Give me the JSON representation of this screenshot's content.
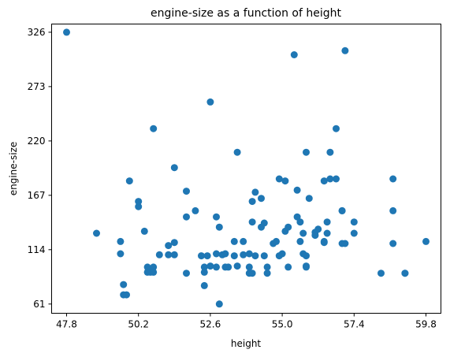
{
  "chart_data": {
    "type": "scatter",
    "title": "engine-size as a function of height",
    "xlabel": "height",
    "ylabel": "engine-size",
    "xlim": [
      47.3,
      60.3
    ],
    "ylim": [
      52,
      334
    ],
    "xticks": [
      47.8,
      50.2,
      52.6,
      55.0,
      57.4,
      59.8
    ],
    "xtick_labels": [
      "47.8",
      "50.2",
      "52.6",
      "55.0",
      "57.4",
      "59.8"
    ],
    "yticks": [
      61,
      114,
      167,
      220,
      273,
      326
    ],
    "ytick_labels": [
      "61",
      "114",
      "167",
      "220",
      "273",
      "326"
    ],
    "grid": false,
    "legend": "none",
    "marker_color": "#1f77b4",
    "points": [
      [
        47.8,
        326
      ],
      [
        48.8,
        130
      ],
      [
        49.6,
        122
      ],
      [
        49.6,
        110
      ],
      [
        49.7,
        80
      ],
      [
        49.7,
        70
      ],
      [
        49.8,
        70
      ],
      [
        49.9,
        181
      ],
      [
        50.2,
        156
      ],
      [
        50.2,
        161
      ],
      [
        50.4,
        132
      ],
      [
        50.5,
        97
      ],
      [
        50.5,
        92
      ],
      [
        50.6,
        92
      ],
      [
        50.7,
        232
      ],
      [
        50.7,
        97
      ],
      [
        50.7,
        92
      ],
      [
        50.9,
        109
      ],
      [
        51.2,
        118
      ],
      [
        51.2,
        109
      ],
      [
        51.4,
        121
      ],
      [
        51.4,
        109
      ],
      [
        51.4,
        194
      ],
      [
        51.8,
        171
      ],
      [
        51.8,
        146
      ],
      [
        51.8,
        91
      ],
      [
        52.1,
        152
      ],
      [
        52.3,
        108
      ],
      [
        52.4,
        97
      ],
      [
        52.4,
        92
      ],
      [
        52.4,
        79
      ],
      [
        52.5,
        108
      ],
      [
        52.6,
        258
      ],
      [
        52.6,
        98
      ],
      [
        52.8,
        97
      ],
      [
        52.8,
        110
      ],
      [
        52.8,
        146
      ],
      [
        52.9,
        136
      ],
      [
        52.9,
        61
      ],
      [
        53.0,
        109
      ],
      [
        53.1,
        97
      ],
      [
        53.1,
        110
      ],
      [
        53.2,
        97
      ],
      [
        53.4,
        108
      ],
      [
        53.4,
        122
      ],
      [
        53.5,
        98
      ],
      [
        53.5,
        209
      ],
      [
        53.7,
        109
      ],
      [
        53.7,
        122
      ],
      [
        53.9,
        110
      ],
      [
        53.9,
        97
      ],
      [
        53.9,
        91
      ],
      [
        54.0,
        91
      ],
      [
        54.0,
        141
      ],
      [
        54.0,
        161
      ],
      [
        54.1,
        170
      ],
      [
        54.1,
        108
      ],
      [
        54.3,
        164
      ],
      [
        54.3,
        136
      ],
      [
        54.4,
        108
      ],
      [
        54.4,
        140
      ],
      [
        54.5,
        97
      ],
      [
        54.5,
        91
      ],
      [
        54.7,
        120
      ],
      [
        54.8,
        122
      ],
      [
        54.9,
        183
      ],
      [
        54.9,
        108
      ],
      [
        55.0,
        110
      ],
      [
        55.1,
        132
      ],
      [
        55.1,
        181
      ],
      [
        55.2,
        97
      ],
      [
        55.2,
        136
      ],
      [
        55.4,
        304
      ],
      [
        55.5,
        172
      ],
      [
        55.5,
        146
      ],
      [
        55.6,
        141
      ],
      [
        55.6,
        122
      ],
      [
        55.7,
        110
      ],
      [
        55.7,
        130
      ],
      [
        55.8,
        108
      ],
      [
        55.8,
        97
      ],
      [
        55.8,
        98
      ],
      [
        55.8,
        209
      ],
      [
        55.9,
        164
      ],
      [
        56.1,
        131
      ],
      [
        56.1,
        128
      ],
      [
        56.2,
        134
      ],
      [
        56.4,
        122
      ],
      [
        56.4,
        121
      ],
      [
        56.4,
        181
      ],
      [
        56.5,
        130
      ],
      [
        56.5,
        141
      ],
      [
        56.6,
        209
      ],
      [
        56.6,
        183
      ],
      [
        56.8,
        183
      ],
      [
        56.8,
        232
      ],
      [
        57.0,
        152
      ],
      [
        57.0,
        120
      ],
      [
        57.1,
        120
      ],
      [
        57.1,
        308
      ],
      [
        57.0,
        152
      ],
      [
        57.4,
        141
      ],
      [
        57.4,
        130
      ],
      [
        58.3,
        91
      ],
      [
        58.7,
        183
      ],
      [
        58.7,
        152
      ],
      [
        58.7,
        120
      ],
      [
        59.1,
        91
      ],
      [
        59.1,
        91
      ],
      [
        59.8,
        122
      ]
    ]
  }
}
